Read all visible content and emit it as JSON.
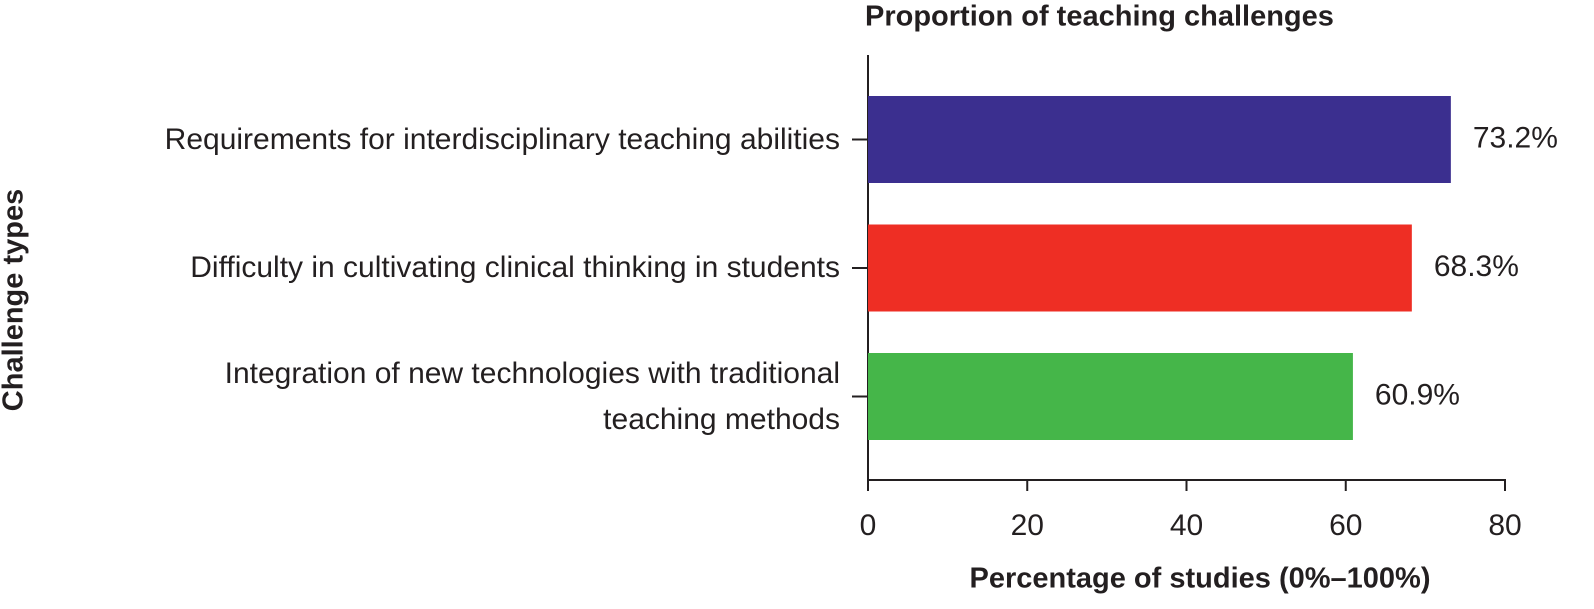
{
  "chart_data": {
    "type": "hbar",
    "title": "Proportion of teaching challenges",
    "x_label": "Percentage of studies (0%–100%)",
    "y_label": "Challenge types",
    "categories": [
      "Requirements for interdisciplinary teaching abilities",
      "Difficulty in cultivating clinical thinking in students",
      "Integration of new technologies with traditional\nteaching methods"
    ],
    "values": [
      73.2,
      68.3,
      60.9
    ],
    "value_labels": [
      "73.2%",
      "68.3%",
      "60.9%"
    ],
    "colors": [
      "#3b2f8f",
      "#ee2e24",
      "#45b649"
    ],
    "xlim": [
      0,
      80
    ],
    "xticks": [
      0,
      20,
      40,
      60,
      80
    ],
    "grid": false
  }
}
